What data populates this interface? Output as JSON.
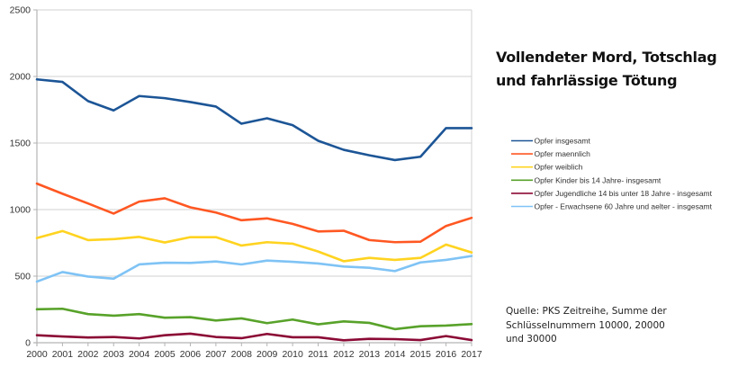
{
  "chart_data": {
    "type": "line",
    "title": "Vollendeter Mord, Totschlag und fahrlässige Tötung",
    "title_lines": [
      "Vollendeter Mord, Totschlag",
      "und fahrlässige Tötung"
    ],
    "xlabel": "",
    "ylabel": "",
    "x": [
      "2000",
      "2001",
      "2002",
      "2003",
      "2004",
      "2005",
      "2006",
      "2007",
      "2008",
      "2009",
      "2010",
      "2011",
      "2012",
      "2013",
      "2014",
      "2015",
      "2016",
      "2017"
    ],
    "ylim": [
      0,
      2500
    ],
    "yticks": [
      0,
      500,
      1000,
      1500,
      2000,
      2500
    ],
    "grid": true,
    "legend_position": "right",
    "series": [
      {
        "name": "Opfer insgesamt",
        "color": "#1c5596",
        "values": [
          1978,
          1959,
          1815,
          1745,
          1853,
          1837,
          1808,
          1774,
          1645,
          1686,
          1634,
          1517,
          1449,
          1408,
          1372,
          1397,
          1612,
          1612
        ]
      },
      {
        "name": "Opfer maennlich",
        "color": "#ff5722",
        "values": [
          1195,
          1119,
          1046,
          970,
          1060,
          1085,
          1017,
          978,
          920,
          934,
          893,
          836,
          841,
          771,
          755,
          759,
          877,
          938
        ]
      },
      {
        "name": "Opfer weiblich",
        "color": "#ffd320",
        "values": [
          786,
          839,
          771,
          778,
          795,
          753,
          793,
          793,
          730,
          755,
          744,
          685,
          612,
          637,
          622,
          637,
          737,
          678
        ]
      },
      {
        "name": "Opfer Kinder bis 14 Jahre- insgesamt",
        "color": "#58a22a",
        "values": [
          251,
          255,
          215,
          203,
          215,
          188,
          192,
          167,
          183,
          147,
          174,
          138,
          160,
          149,
          102,
          124,
          129,
          140
        ]
      },
      {
        "name": "Opfer Jugendliche 14 bis unter 18 Jahre - insgesamt",
        "color": "#8b0a35",
        "values": [
          56,
          47,
          39,
          43,
          32,
          56,
          68,
          43,
          34,
          66,
          41,
          41,
          18,
          29,
          27,
          20,
          50,
          20
        ]
      },
      {
        "name": "Opfer - Erwachsene 60 Jahre und aelter - insgesamt",
        "color": "#7fc3f5",
        "values": [
          459,
          531,
          497,
          481,
          588,
          601,
          599,
          610,
          588,
          617,
          608,
          595,
          572,
          563,
          538,
          603,
          622,
          651
        ]
      }
    ],
    "annotation_lines": [
      "Quelle: PKS Zeitreihe, Summe der",
      "Schlüsselnummern 10000, 20000",
      "und 30000"
    ]
  },
  "colors": {
    "grid": "#d9d9d9",
    "axis": "#b3b3b3",
    "text": "#333333"
  }
}
